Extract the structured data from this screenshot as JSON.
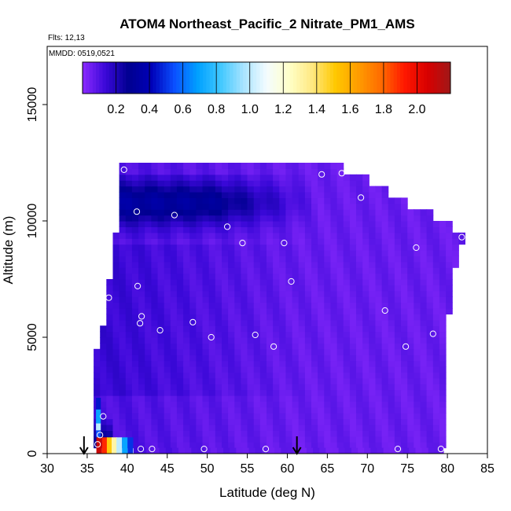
{
  "chart_data": {
    "type": "heatmap",
    "title": "ATOM4 Northeast_Pacific_2 Nitrate_PM1_AMS",
    "flights_note": "Flts: 12,13",
    "date_note": "MMDD: 0519,0521",
    "xlabel": "Latitude (deg N)",
    "ylabel": "Altitude (m)",
    "xlim": [
      30,
      85
    ],
    "ylim": [
      0,
      17500
    ],
    "x_ticks": [
      30,
      35,
      40,
      45,
      50,
      55,
      60,
      65,
      70,
      75,
      80,
      85
    ],
    "y_ticks": [
      0,
      5000,
      10000,
      15000
    ],
    "colorbar": {
      "range": [
        0,
        2.2
      ],
      "ticks": [
        0.2,
        0.4,
        0.6,
        0.8,
        1.0,
        1.2,
        1.4,
        1.6,
        1.8,
        2.0
      ],
      "tick_labels": [
        "0.2",
        "0.4",
        "0.6",
        "0.8",
        "1.0",
        "1.2",
        "1.4",
        "1.6",
        "1.8",
        "2.0"
      ],
      "colors": [
        "#8B2BFF",
        "#3A08D8",
        "#000090",
        "#0000B8",
        "#0A50FF",
        "#00A0FF",
        "#40C8FF",
        "#A8E4FF",
        "#F4FCFF",
        "#FFFFC8",
        "#FFE880",
        "#FFC800",
        "#FF9C00",
        "#FF6A00",
        "#FF1800",
        "#D80000",
        "#A01818"
      ]
    },
    "region_outline_lat_alt": [
      [
        36.1,
        0
      ],
      [
        36.1,
        4500
      ],
      [
        36.9,
        5200
      ],
      [
        37.7,
        7200
      ],
      [
        38.3,
        8800
      ],
      [
        39.1,
        10800
      ],
      [
        39.1,
        12400
      ],
      [
        66.9,
        12400
      ],
      [
        66.9,
        11900
      ],
      [
        69.8,
        11900
      ],
      [
        69.8,
        11400
      ],
      [
        72.3,
        11400
      ],
      [
        72.3,
        10900
      ],
      [
        75.1,
        10900
      ],
      [
        75.1,
        10400
      ],
      [
        78.0,
        10400
      ],
      [
        78.0,
        9900
      ],
      [
        80.6,
        9900
      ],
      [
        80.6,
        9400
      ],
      [
        82.1,
        9400
      ],
      [
        82.1,
        9000
      ],
      [
        81.3,
        9000
      ],
      [
        81.3,
        7900
      ],
      [
        80.6,
        7900
      ],
      [
        80.6,
        6000
      ],
      [
        80.1,
        6000
      ],
      [
        80.1,
        2000
      ],
      [
        79.5,
        2000
      ],
      [
        79.5,
        0
      ]
    ],
    "low_level_bar": {
      "alt_range": [
        0,
        250
      ],
      "cells": [
        {
          "lat": 36.5,
          "value": 2.1
        },
        {
          "lat": 37.2,
          "value": 1.9
        },
        {
          "lat": 37.8,
          "value": 1.5
        },
        {
          "lat": 38.4,
          "value": 1.3
        },
        {
          "lat": 39.0,
          "value": 1.0
        },
        {
          "lat": 39.7,
          "value": 0.7
        },
        {
          "lat": 40.4,
          "value": 0.5
        }
      ]
    },
    "field_description": "nitrate mixing values ~0.3 at 9500-12000 m for 39-60N, ~0.05-0.15 elsewhere, higher near surface at 36N",
    "flight_markers_lat": [
      34.6,
      61.2
    ],
    "sample_points": [
      {
        "lat": 39.6,
        "alt": 12200
      },
      {
        "lat": 64.3,
        "alt": 12000
      },
      {
        "lat": 66.8,
        "alt": 12050
      },
      {
        "lat": 69.2,
        "alt": 11000
      },
      {
        "lat": 41.2,
        "alt": 10400
      },
      {
        "lat": 45.9,
        "alt": 10250
      },
      {
        "lat": 52.5,
        "alt": 9750
      },
      {
        "lat": 54.4,
        "alt": 9050
      },
      {
        "lat": 59.6,
        "alt": 9050
      },
      {
        "lat": 76.1,
        "alt": 8850
      },
      {
        "lat": 81.8,
        "alt": 9300
      },
      {
        "lat": 60.5,
        "alt": 7400
      },
      {
        "lat": 41.3,
        "alt": 7200
      },
      {
        "lat": 37.7,
        "alt": 6700
      },
      {
        "lat": 72.2,
        "alt": 6150
      },
      {
        "lat": 41.8,
        "alt": 5900
      },
      {
        "lat": 41.6,
        "alt": 5600
      },
      {
        "lat": 48.2,
        "alt": 5650
      },
      {
        "lat": 44.1,
        "alt": 5300
      },
      {
        "lat": 50.5,
        "alt": 5000
      },
      {
        "lat": 56.0,
        "alt": 5100
      },
      {
        "lat": 78.2,
        "alt": 5150
      },
      {
        "lat": 58.3,
        "alt": 4600
      },
      {
        "lat": 74.8,
        "alt": 4600
      },
      {
        "lat": 80.3,
        "alt": 4350
      },
      {
        "lat": 35.4,
        "alt": 4100
      },
      {
        "lat": 37.0,
        "alt": 1600
      },
      {
        "lat": 36.6,
        "alt": 800
      },
      {
        "lat": 36.3,
        "alt": 400
      },
      {
        "lat": 41.7,
        "alt": 200
      },
      {
        "lat": 43.1,
        "alt": 200
      },
      {
        "lat": 49.6,
        "alt": 200
      },
      {
        "lat": 57.3,
        "alt": 200
      },
      {
        "lat": 73.8,
        "alt": 200
      },
      {
        "lat": 79.2,
        "alt": 200
      }
    ]
  }
}
